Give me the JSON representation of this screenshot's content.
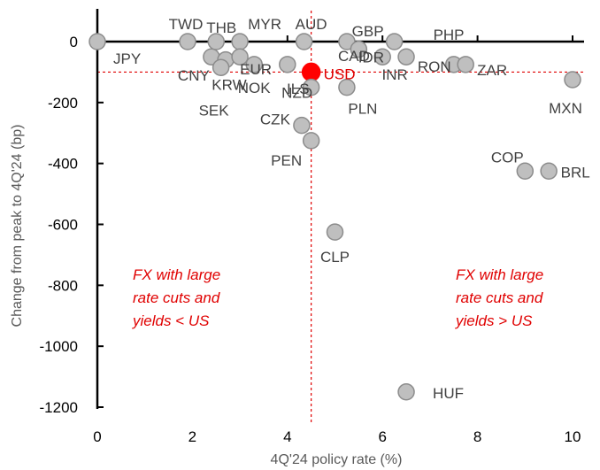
{
  "chart_data": {
    "type": "scatter",
    "title": "",
    "xlabel": "4Q'24 policy rate (%)",
    "ylabel": "Change from peak to 4Q'24 (bp)",
    "xlim": [
      0,
      10
    ],
    "ylim": [
      -1200,
      0
    ],
    "x_ticks": [
      "0",
      "2",
      "4",
      "6",
      "8",
      "10"
    ],
    "y_ticks": [
      "0",
      "-200",
      "-400",
      "-600",
      "-800",
      "-1000",
      "-1200"
    ],
    "grid": false,
    "reference_lines": {
      "x": 4.5,
      "y": -100,
      "color": "#e00000",
      "style": "dashed"
    },
    "colors": {
      "points": "#bfbfbf",
      "point_stroke": "#8c8c8c",
      "highlight": "#ff0000",
      "annotation": "#e00000"
    },
    "points": [
      {
        "label": "JPY",
        "x": 0.0,
        "y": 0
      },
      {
        "label": "TWD",
        "x": 1.9,
        "y": 0
      },
      {
        "label": "CNY",
        "x": 2.4,
        "y": -50
      },
      {
        "label": "THB",
        "x": 2.5,
        "y": 0
      },
      {
        "label": "KRW",
        "x": 2.7,
        "y": -60
      },
      {
        "label": "SEK",
        "x": 2.6,
        "y": -85
      },
      {
        "label": "MYR",
        "x": 3.0,
        "y": 0
      },
      {
        "label": "EUR",
        "x": 3.0,
        "y": -50
      },
      {
        "label": "NOK",
        "x": 3.3,
        "y": -75
      },
      {
        "label": "AUD",
        "x": 4.35,
        "y": 0
      },
      {
        "label": "ILS",
        "x": 4.0,
        "y": -75
      },
      {
        "label": "USD",
        "x": 4.5,
        "y": -100,
        "highlight": true
      },
      {
        "label": "NZD",
        "x": 4.5,
        "y": -150
      },
      {
        "label": "CAD",
        "x": 5.25,
        "y": 0
      },
      {
        "label": "IDR",
        "x": 5.5,
        "y": -25
      },
      {
        "label": "PLN",
        "x": 5.25,
        "y": -150
      },
      {
        "label": "INR",
        "x": 6.0,
        "y": -50
      },
      {
        "label": "GBP",
        "x": 6.25,
        "y": 0
      },
      {
        "label": "PHP",
        "x": 6.5,
        "y": -50
      },
      {
        "label": "RON",
        "x": 7.5,
        "y": -75
      },
      {
        "label": "ZAR",
        "x": 7.75,
        "y": -75
      },
      {
        "label": "MXN",
        "x": 10.0,
        "y": -125
      },
      {
        "label": "CZK",
        "x": 4.3,
        "y": -275
      },
      {
        "label": "PEN",
        "x": 4.5,
        "y": -325
      },
      {
        "label": "COP",
        "x": 9.0,
        "y": -425
      },
      {
        "label": "BRL",
        "x": 9.5,
        "y": -425
      },
      {
        "label": "CLP",
        "x": 5.0,
        "y": -625
      },
      {
        "label": "HUF",
        "x": 6.5,
        "y": -1150
      }
    ],
    "annotations": [
      {
        "lines": [
          "FX with large",
          "rate cuts and",
          "yields < US"
        ]
      },
      {
        "lines": [
          "FX with large",
          "rate cuts and",
          "yields > US"
        ]
      }
    ]
  }
}
